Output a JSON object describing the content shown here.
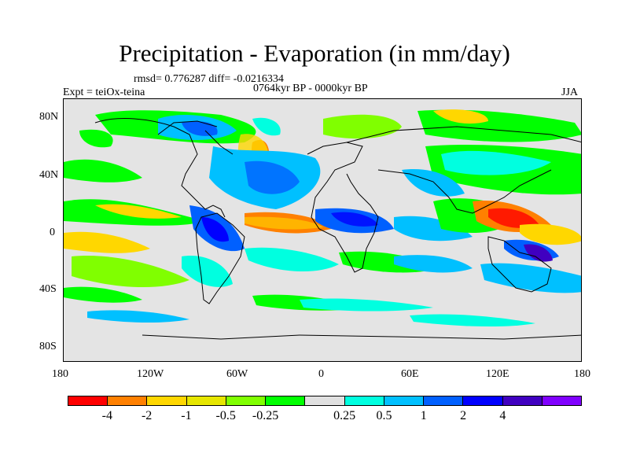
{
  "title": "Precipitation - Evaporation (in mm/day)",
  "stats": "rmsd= 0.776287  diff= -0.0216334",
  "period": "0764kyr BP - 0000kyr BP",
  "experiment": "Expt = teiOx-teina",
  "season": "JJA",
  "axes": {
    "x_labels": [
      "180",
      "120W",
      "60W",
      "0",
      "60E",
      "120E",
      "180"
    ],
    "y_labels": [
      "80N",
      "40N",
      "0",
      "40S",
      "80S"
    ]
  },
  "colorbar": {
    "labels": [
      "-4",
      "-2",
      "-1",
      "-0.5",
      "-0.25",
      "0.25",
      "0.5",
      "1",
      "2",
      "4"
    ],
    "colors": [
      "#ff0000",
      "#ff8000",
      "#ffd700",
      "#e6e600",
      "#80ff00",
      "#00ff00",
      "#e0e0e0",
      "#00ffe0",
      "#00c0ff",
      "#0060ff",
      "#0000ff",
      "#4000c0",
      "#8000ff"
    ]
  },
  "colors": {
    "neutral": "#e4e4e4",
    "land_outline": "#000000"
  }
}
